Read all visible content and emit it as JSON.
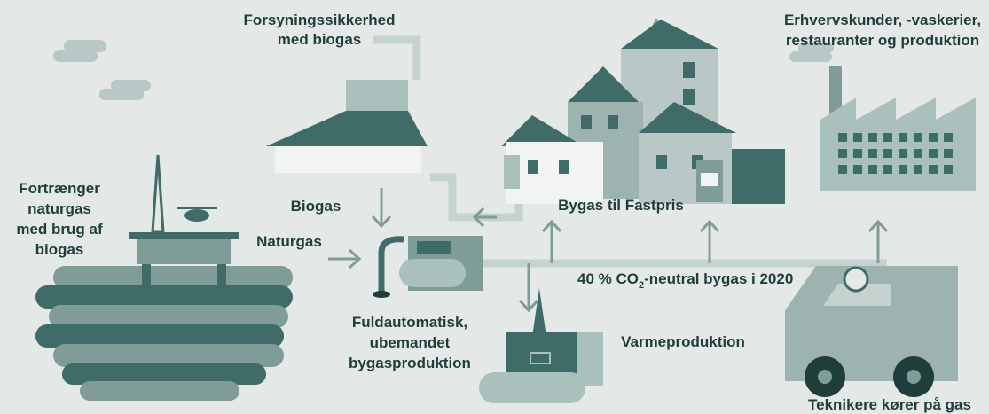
{
  "labels": {
    "supply": [
      "Forsyningssikkerhed",
      "med biogas"
    ],
    "commercial": [
      "Erhvervskunder, -vaskerier,",
      "restauranter og produktion"
    ],
    "displace": [
      "Fortrænger",
      "naturgas",
      "med brug af",
      "biogas"
    ],
    "biogas": "Biogas",
    "naturgas": "Naturgas",
    "citygas": "Bygas til Fastpris",
    "co2": {
      "before": "40 % CO",
      "sub": "2",
      "after": "-neutral bygas i 2020"
    },
    "automatic": [
      "Fuldautomatisk,",
      "ubemandet",
      "bygasproduktion"
    ],
    "heat": "Varmeproduktion",
    "technicians": "Teknikere kører på gas"
  }
}
